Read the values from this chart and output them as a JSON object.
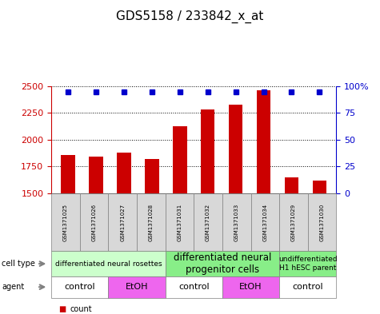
{
  "title": "GDS5158 / 233842_x_at",
  "samples": [
    "GSM1371025",
    "GSM1371026",
    "GSM1371027",
    "GSM1371028",
    "GSM1371031",
    "GSM1371032",
    "GSM1371033",
    "GSM1371034",
    "GSM1371029",
    "GSM1371030"
  ],
  "counts": [
    1855,
    1840,
    1880,
    1820,
    2130,
    2280,
    2330,
    2460,
    1650,
    1620
  ],
  "percentiles": [
    95,
    95,
    95,
    95,
    95,
    95,
    95,
    95,
    95,
    95
  ],
  "ylim_left": [
    1500,
    2500
  ],
  "ylim_right": [
    0,
    100
  ],
  "yticks_left": [
    1500,
    1750,
    2000,
    2250,
    2500
  ],
  "yticks_right": [
    0,
    25,
    50,
    75,
    100
  ],
  "bar_color": "#cc0000",
  "dot_color": "#0000cc",
  "cell_type_groups": [
    {
      "label": "differentiated neural rosettes",
      "start": 0,
      "end": 4,
      "color": "#ccffcc",
      "fontsize": 6.5
    },
    {
      "label": "differentiated neural\nprogenitor cells",
      "start": 4,
      "end": 8,
      "color": "#88ee88",
      "fontsize": 8.5
    },
    {
      "label": "undifferentiated\nH1 hESC parent",
      "start": 8,
      "end": 10,
      "color": "#88ee88",
      "fontsize": 6.5
    }
  ],
  "agent_groups": [
    {
      "label": "control",
      "start": 0,
      "end": 2,
      "color": "#ffffff"
    },
    {
      "label": "EtOH",
      "start": 2,
      "end": 4,
      "color": "#ee66ee"
    },
    {
      "label": "control",
      "start": 4,
      "end": 6,
      "color": "#ffffff"
    },
    {
      "label": "EtOH",
      "start": 6,
      "end": 8,
      "color": "#ee66ee"
    },
    {
      "label": "control",
      "start": 8,
      "end": 10,
      "color": "#ffffff"
    }
  ],
  "bg_color": "#d8d8d8",
  "legend_count_color": "#cc0000",
  "legend_dot_color": "#0000cc"
}
